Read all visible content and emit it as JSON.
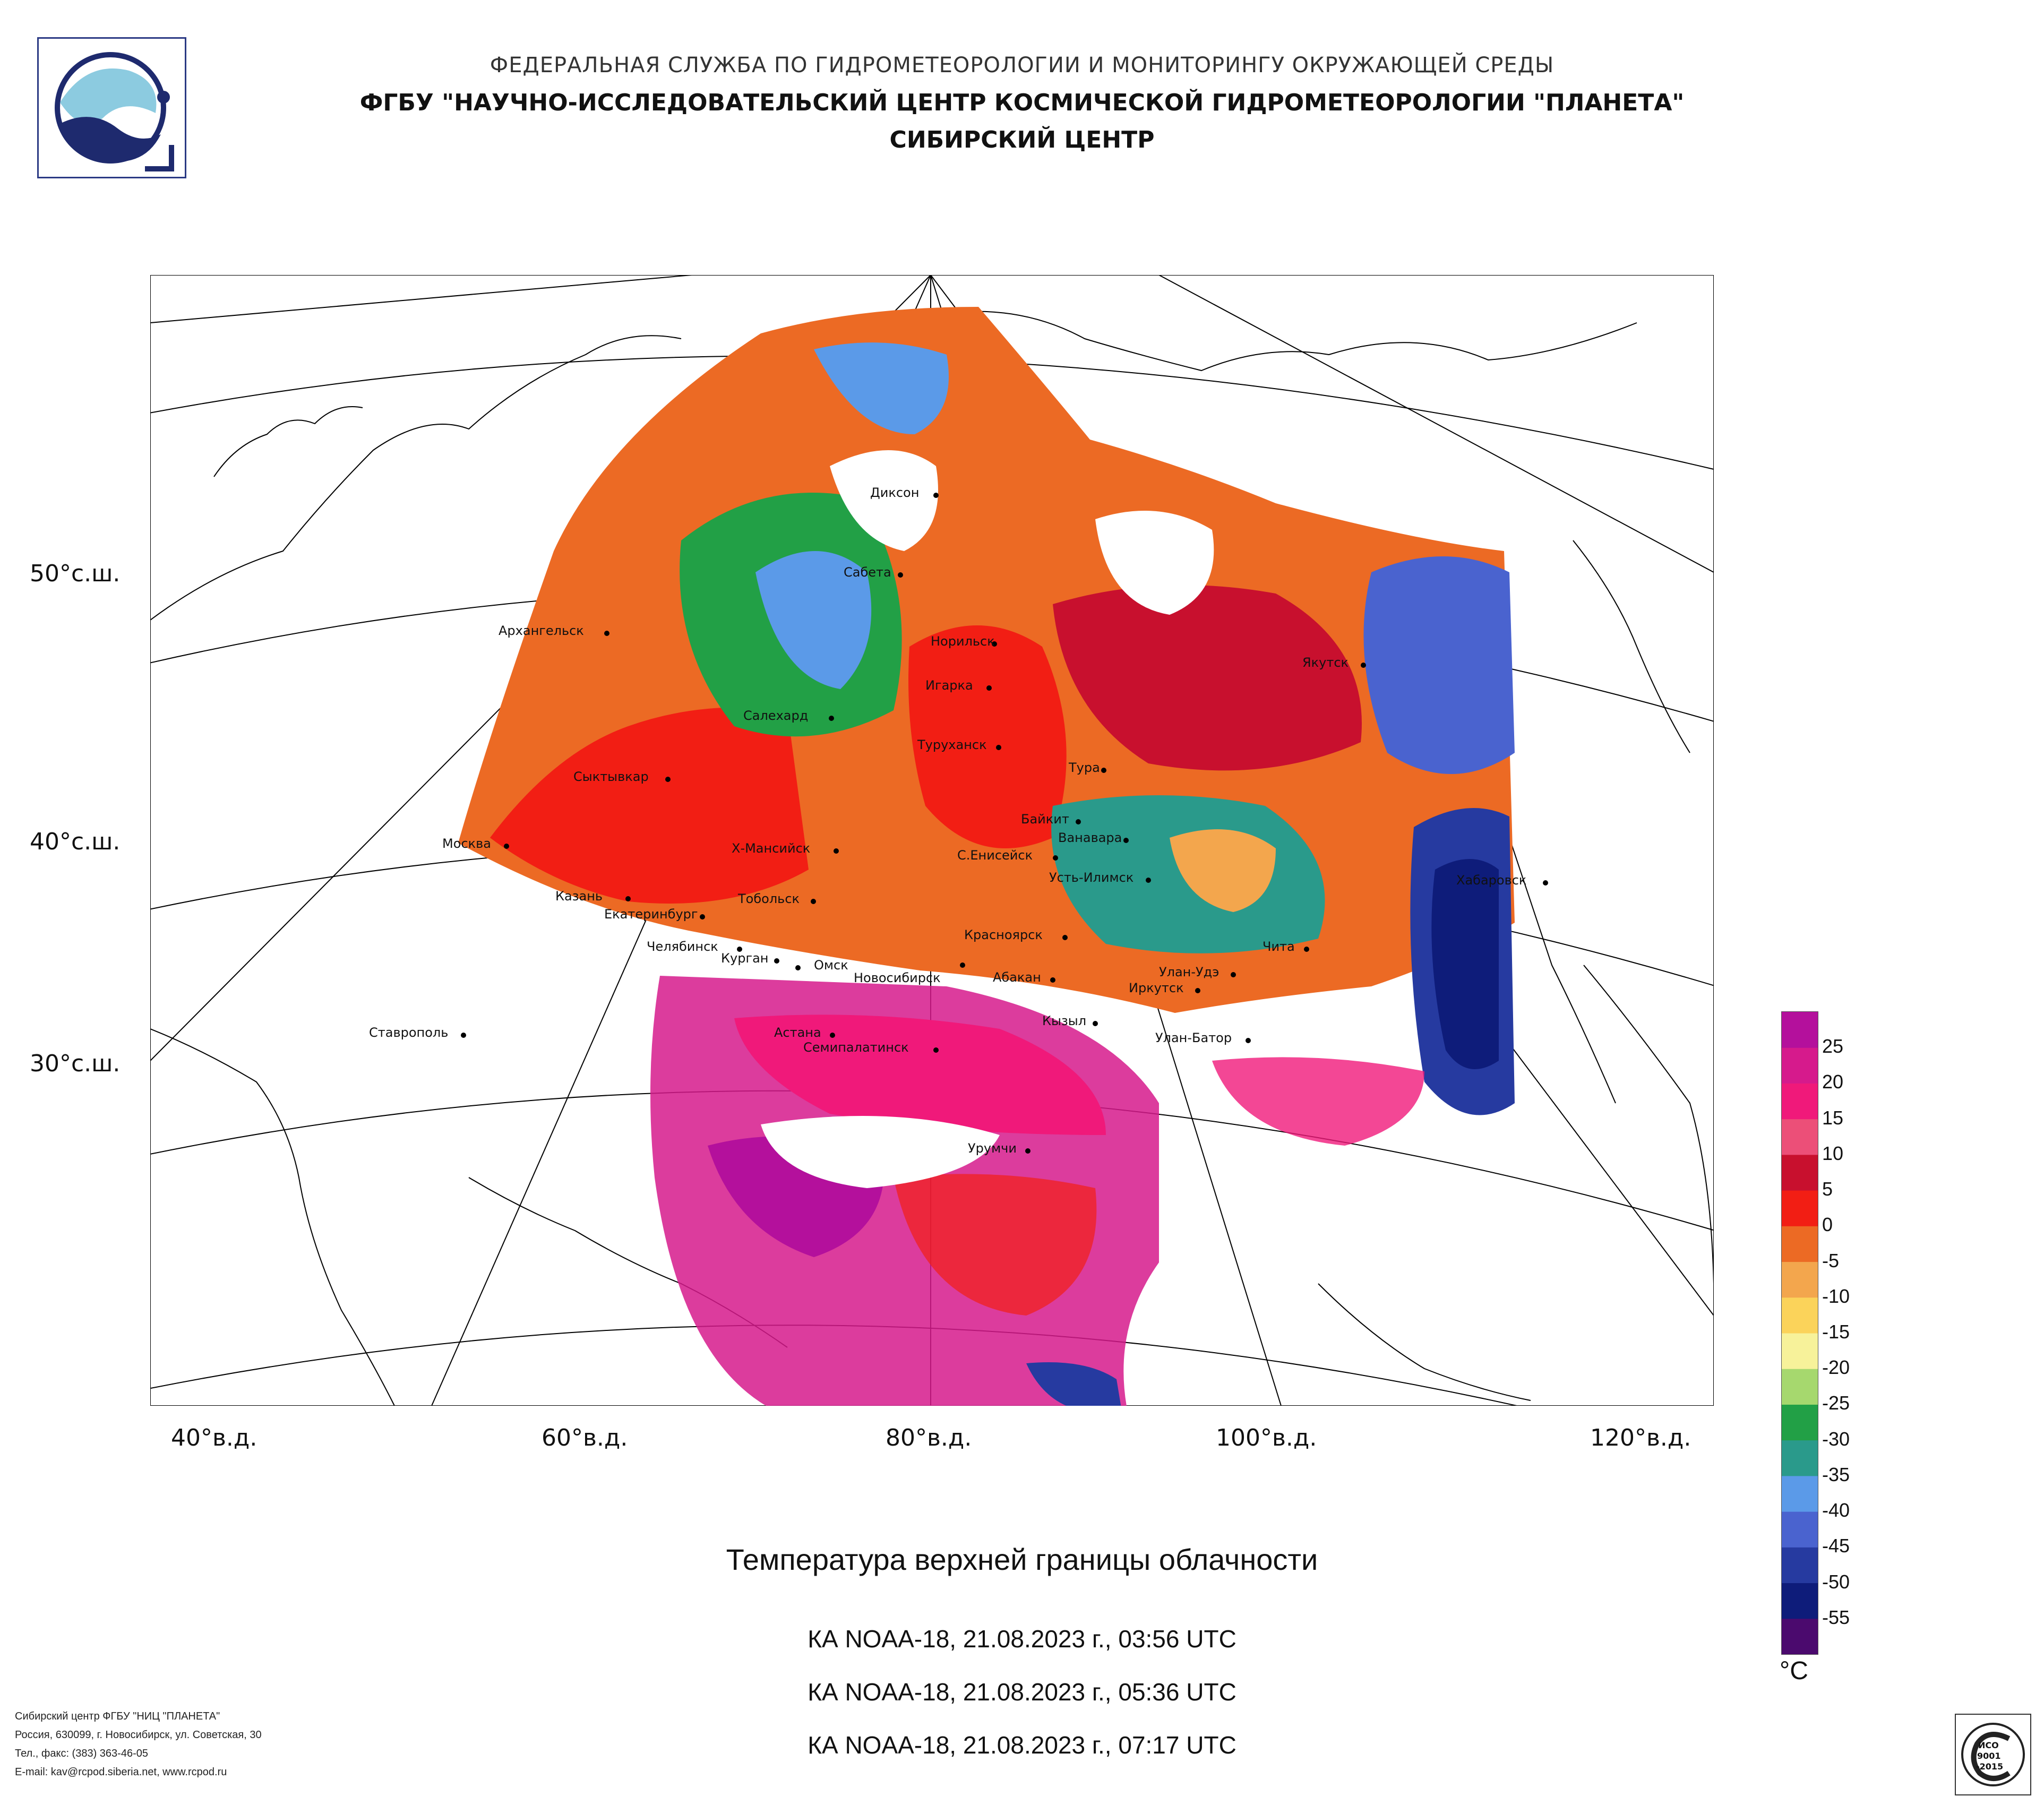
{
  "header": {
    "line1": "ФЕДЕРАЛЬНАЯ СЛУЖБА ПО ГИДРОМЕТЕОРОЛОГИИ И МОНИТОРИНГУ ОКРУЖАЮЩЕЙ СРЕДЫ",
    "line2": "ФГБУ \"НАУЧНО-ИССЛЕДОВАТЕЛЬСКИЙ ЦЕНТР КОСМИЧЕСКОЙ ГИДРОМЕТЕОРОЛОГИИ \"ПЛАНЕТА\"",
    "line3": "СИБИРСКИЙ ЦЕНТР"
  },
  "map": {
    "lat_labels": [
      "50°с.ш.",
      "40°с.ш.",
      "30°с.ш."
    ],
    "lon_labels": [
      "40°в.д.",
      "60°в.д.",
      "80°в.д.",
      "100°в.д.",
      "120°в.д."
    ],
    "cities": [
      "Диксон",
      "Сабета",
      "Норильск",
      "Архангельск",
      "Игарка",
      "Салехард",
      "Якутск",
      "Туруханск",
      "Тура",
      "Сыктывкар",
      "Байкит",
      "Ванавара",
      "Москва",
      "Х-Мансийск",
      "С.Енисейск",
      "Усть-Илимск",
      "Хабаровск",
      "Казань",
      "Тобольск",
      "Екатеринбург",
      "Красноярск",
      "Челябинск",
      "Чита",
      "Курган",
      "Омск",
      "Новосибирск",
      "Абакан",
      "Улан-Удэ",
      "Иркутск",
      "Кызыл",
      "Ставрополь",
      "Астана",
      "Семипалатинск",
      "Улан-Батор",
      "Урумчи"
    ]
  },
  "legend": {
    "unit": "°C",
    "ticks": [
      "25",
      "20",
      "15",
      "10",
      "5",
      "0",
      "-5",
      "-10",
      "-15",
      "-20",
      "-25",
      "-30",
      "-35",
      "-40",
      "-45",
      "-50",
      "-55"
    ],
    "colors": [
      "#4b0a6e",
      "#0e1c7a",
      "#263aa0",
      "#4a63cf",
      "#5b9ae8",
      "#2a9a8b",
      "#22a046",
      "#a6d86e",
      "#f7f29a",
      "#fbd35a",
      "#f3a64d",
      "#ec6a24",
      "#f21e14",
      "#c8102e",
      "#ec4f78",
      "#f0197a",
      "#d61a8c",
      "#b4109c"
    ]
  },
  "title": "Температура верхней границы облачности",
  "passes": [
    "КА NOAA-18, 21.08.2023 г., 03:56 UTC",
    "КА NOAA-18, 21.08.2023 г., 05:36 UTC",
    "КА NOAA-18, 21.08.2023 г., 07:17 UTC"
  ],
  "footer": [
    "Сибирский центр ФГБУ \"НИЦ \"ПЛАНЕТА\"",
    "Россия, 630099, г. Новосибирск, ул. Советская, 30",
    "Тел., факс: (383) 363-46-05",
    "E-mail: kav@rcpod.siberia.net, www.rcpod.ru"
  ],
  "iso_badge": [
    "ИСО",
    "9001",
    "-2015"
  ]
}
